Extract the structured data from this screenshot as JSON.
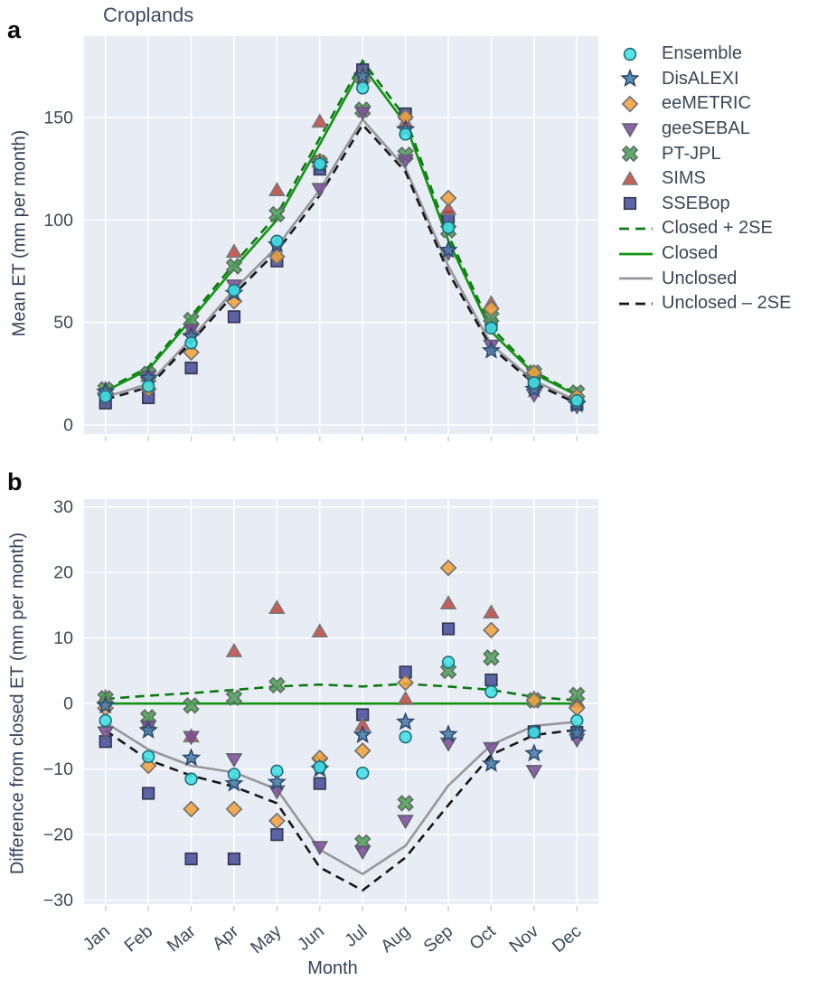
{
  "figure": {
    "panel_a": "a",
    "panel_b": "b"
  },
  "colors": {
    "plot_bg": "#e8ecf5",
    "grid": "#ffffff",
    "tick_text": "#3b4859",
    "axis_text": "#33405a",
    "title_text": "#3b4963",
    "tick_mark": "#c9ced8"
  },
  "series_meta": [
    {
      "name": "Ensemble",
      "marker": "circle",
      "fill": "#3fe0e6",
      "stroke": "#1f6e78"
    },
    {
      "name": "DisALEXI",
      "marker": "star",
      "fill": "#4a7ca8",
      "stroke": "#2b4a6f"
    },
    {
      "name": "eeMETRIC",
      "marker": "diamond",
      "fill": "#f0a23c",
      "stroke": "#6f6f6f"
    },
    {
      "name": "geeSEBAL",
      "marker": "triangle-down",
      "fill": "#7d4f9b",
      "stroke": "#5f5f6e"
    },
    {
      "name": "PT-JPL",
      "marker": "x",
      "fill": "#4f9d58",
      "stroke": "#5c6e60"
    },
    {
      "name": "SIMS",
      "marker": "triangle-up",
      "fill": "#bf4a42",
      "stroke": "#787878"
    },
    {
      "name": "SSEBop",
      "marker": "square",
      "fill": "#474f9b",
      "stroke": "#32364f"
    }
  ],
  "line_meta": [
    {
      "name": "Closed + 2SE",
      "style": "dashed",
      "color": "#0c7a10"
    },
    {
      "name": "Closed",
      "style": "solid",
      "color": "#129312"
    },
    {
      "name": "Unclosed",
      "style": "solid",
      "color": "#97979d"
    },
    {
      "name": "Unclosed – 2SE",
      "style": "dashed",
      "color": "#17171c"
    }
  ],
  "chart_data": [
    {
      "type": "scatter",
      "panel": "a",
      "title": "Croplands",
      "ylabel": "Mean ET (mm per month)",
      "xlabel": "",
      "categories": [
        "Jan",
        "Feb",
        "Mar",
        "Apr",
        "May",
        "Jun",
        "Jul",
        "Aug",
        "Sep",
        "Oct",
        "Nov",
        "Dec"
      ],
      "ylim": [
        -4.4,
        189.7
      ],
      "yticks": [
        0,
        50,
        100,
        150
      ],
      "show_x_labels": false,
      "grid": true,
      "legend_position": "right",
      "series": [
        {
          "name": "Ensemble",
          "values": [
            13.9,
            18.9,
            40.0,
            65.7,
            89.7,
            127.3,
            164.4,
            141.9,
            96.3,
            47.3,
            20.6,
            11.9
          ]
        },
        {
          "name": "DisALEXI",
          "values": [
            16.2,
            22.9,
            43.2,
            64.3,
            88.0,
            127.0,
            170.2,
            144.2,
            85.3,
            36.3,
            17.4,
            10.0
          ]
        },
        {
          "name": "eeMETRIC",
          "values": [
            15.8,
            17.5,
            35.4,
            60.4,
            82.1,
            128.7,
            167.8,
            150.2,
            110.7,
            56.7,
            25.5,
            13.8
          ]
        },
        {
          "name": "geeSEBAL",
          "values": [
            12.1,
            23.5,
            46.4,
            68.0,
            86.6,
            115.1,
            152.4,
            129.1,
            83.9,
            38.7,
            14.7,
            9.0
          ]
        },
        {
          "name": "PT-JPL",
          "values": [
            17.3,
            24.9,
            51.2,
            77.4,
            102.8,
            128.0,
            153.8,
            131.8,
            95.0,
            52.5,
            25.5,
            15.8
          ]
        },
        {
          "name": "SIMS",
          "values": [
            17.5,
            24.0,
            46.5,
            84.5,
            114.6,
            148.0,
            171.7,
            147.7,
            105.3,
            59.4,
            25.8,
            14.8
          ]
        },
        {
          "name": "SSEBop",
          "values": [
            10.7,
            13.3,
            27.8,
            52.8,
            80.0,
            124.8,
            173.3,
            151.8,
            101.4,
            49.1,
            20.7,
            10.1
          ]
        }
      ],
      "lines": [
        {
          "name": "Closed + 2SE",
          "values": [
            17.2,
            28.2,
            53.1,
            78.6,
            102.6,
            139.9,
            177.6,
            150.0,
            92.6,
            47.6,
            26.0,
            15.0
          ]
        },
        {
          "name": "Closed",
          "values": [
            16.5,
            27.0,
            51.5,
            76.5,
            100.0,
            137.0,
            175.0,
            147.0,
            90.0,
            45.5,
            25.0,
            14.5
          ]
        },
        {
          "name": "Unclosed",
          "values": [
            13.6,
            20.0,
            42.0,
            66.0,
            86.9,
            114.7,
            149.0,
            125.3,
            77.5,
            39.2,
            21.6,
            11.7
          ]
        },
        {
          "name": "Unclosed – 2SE",
          "values": [
            12.4,
            18.4,
            40.5,
            63.8,
            84.8,
            112.0,
            146.5,
            123.5,
            74.5,
            37.7,
            20.2,
            10.5
          ]
        }
      ]
    },
    {
      "type": "scatter",
      "panel": "b",
      "title": "",
      "ylabel": "Difference from closed ET (mm per month)",
      "xlabel": "Month",
      "categories": [
        "Jan",
        "Feb",
        "Mar",
        "Apr",
        "May",
        "Jun",
        "Jul",
        "Aug",
        "Sep",
        "Oct",
        "Nov",
        "Dec"
      ],
      "ylim": [
        -30.6,
        31.2
      ],
      "yticks": [
        30,
        20,
        10,
        0,
        -10,
        -20,
        -30
      ],
      "show_x_labels": true,
      "grid": true,
      "series": [
        {
          "name": "Ensemble",
          "values": [
            -2.6,
            -8.1,
            -11.5,
            -10.8,
            -10.3,
            -9.7,
            -10.6,
            -5.1,
            6.3,
            1.8,
            -4.4,
            -2.6
          ]
        },
        {
          "name": "DisALEXI",
          "values": [
            -0.3,
            -4.1,
            -8.3,
            -12.2,
            -12.0,
            -10.0,
            -4.8,
            -2.8,
            -4.7,
            -9.2,
            -7.6,
            -4.5
          ]
        },
        {
          "name": "eeMETRIC",
          "values": [
            -0.7,
            -9.5,
            -16.1,
            -16.1,
            -17.9,
            -8.3,
            -7.2,
            3.2,
            20.7,
            11.2,
            0.5,
            -0.7
          ]
        },
        {
          "name": "geeSEBAL",
          "values": [
            -4.4,
            -3.5,
            -5.1,
            -8.5,
            -13.4,
            -21.9,
            -22.6,
            -17.9,
            -6.1,
            -6.8,
            -10.3,
            -5.5
          ]
        },
        {
          "name": "PT-JPL",
          "values": [
            0.8,
            -2.1,
            -0.3,
            0.9,
            2.8,
            -9.0,
            -21.2,
            -15.2,
            5.0,
            7.0,
            0.5,
            1.3
          ]
        },
        {
          "name": "SIMS",
          "values": [
            1.0,
            -3.0,
            -5.0,
            8.0,
            14.6,
            11.0,
            -3.3,
            0.7,
            15.3,
            13.9,
            0.8,
            0.3
          ]
        },
        {
          "name": "SSEBop",
          "values": [
            -5.8,
            -13.7,
            -23.7,
            -23.7,
            -20.0,
            -12.2,
            -1.7,
            4.8,
            11.4,
            3.6,
            -4.3,
            -4.4
          ]
        }
      ],
      "lines": [
        {
          "name": "Closed + 2SE",
          "values": [
            0.7,
            1.2,
            1.6,
            2.1,
            2.6,
            2.9,
            2.6,
            3.0,
            2.6,
            2.1,
            1.0,
            0.5
          ]
        },
        {
          "name": "Closed",
          "values": [
            0,
            0,
            0,
            0,
            0,
            0,
            0,
            0,
            0,
            0,
            0,
            0
          ]
        },
        {
          "name": "Unclosed",
          "values": [
            -2.9,
            -7.0,
            -9.5,
            -10.5,
            -13.1,
            -22.3,
            -26.0,
            -21.7,
            -12.5,
            -6.3,
            -3.4,
            -2.8
          ]
        },
        {
          "name": "Unclosed – 2SE",
          "values": [
            -4.1,
            -8.6,
            -11.0,
            -12.7,
            -15.2,
            -25.0,
            -28.5,
            -23.5,
            -15.5,
            -7.8,
            -4.8,
            -4.0
          ]
        }
      ]
    }
  ]
}
